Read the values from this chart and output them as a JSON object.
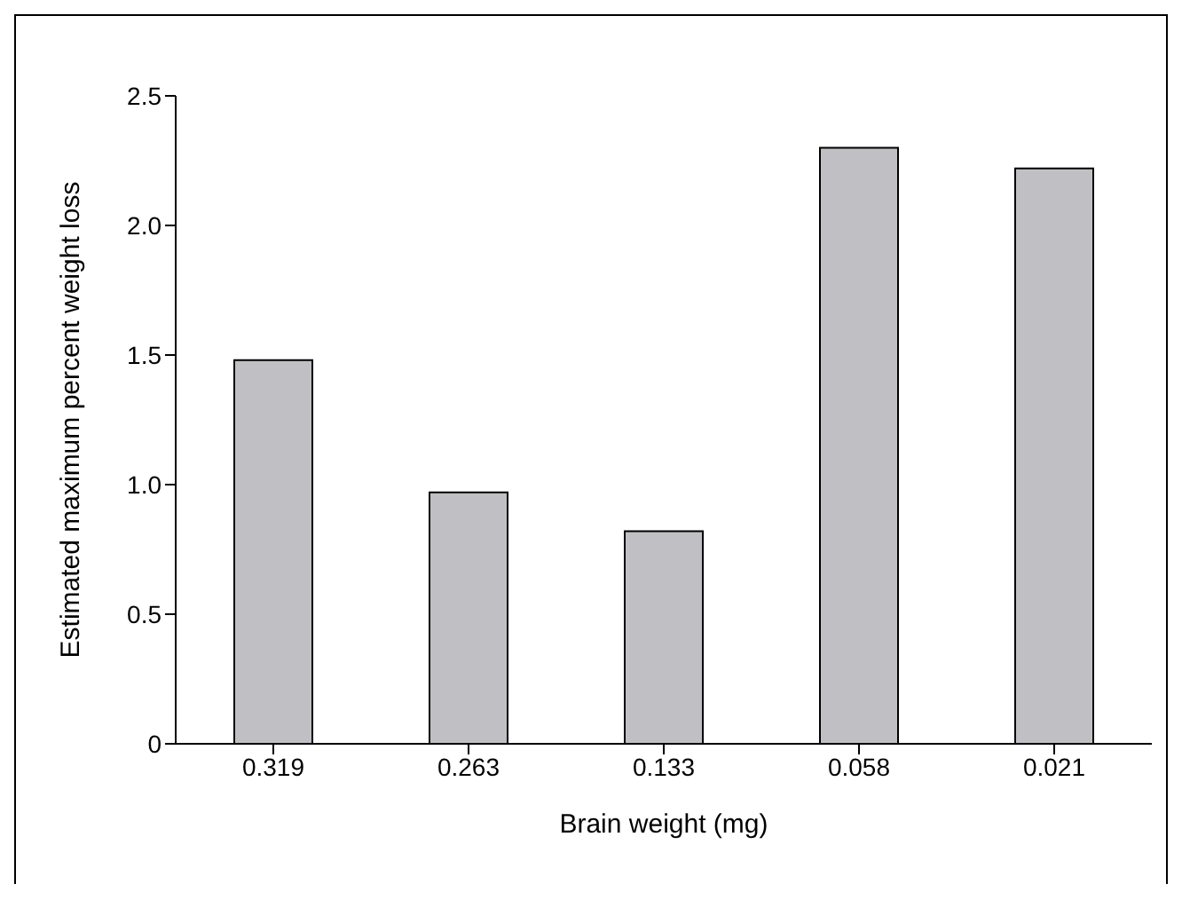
{
  "chart_data": {
    "type": "bar",
    "xlabel": "Brain weight (mg)",
    "ylabel": "Estimated maximum percent weight loss",
    "categories": [
      "0.319",
      "0.263",
      "0.133",
      "0.058",
      "0.021"
    ],
    "values": [
      1.48,
      0.97,
      0.82,
      2.3,
      2.22
    ],
    "color": "#c0c0c4",
    "ylim": [
      0,
      2.5
    ],
    "yticks": [
      {
        "value": 0,
        "label": "0"
      },
      0.5,
      {
        "value": 1,
        "label": "1.0"
      },
      1.5,
      {
        "value": 2,
        "label": "2.0"
      },
      2.5
    ],
    "grid": false
  }
}
